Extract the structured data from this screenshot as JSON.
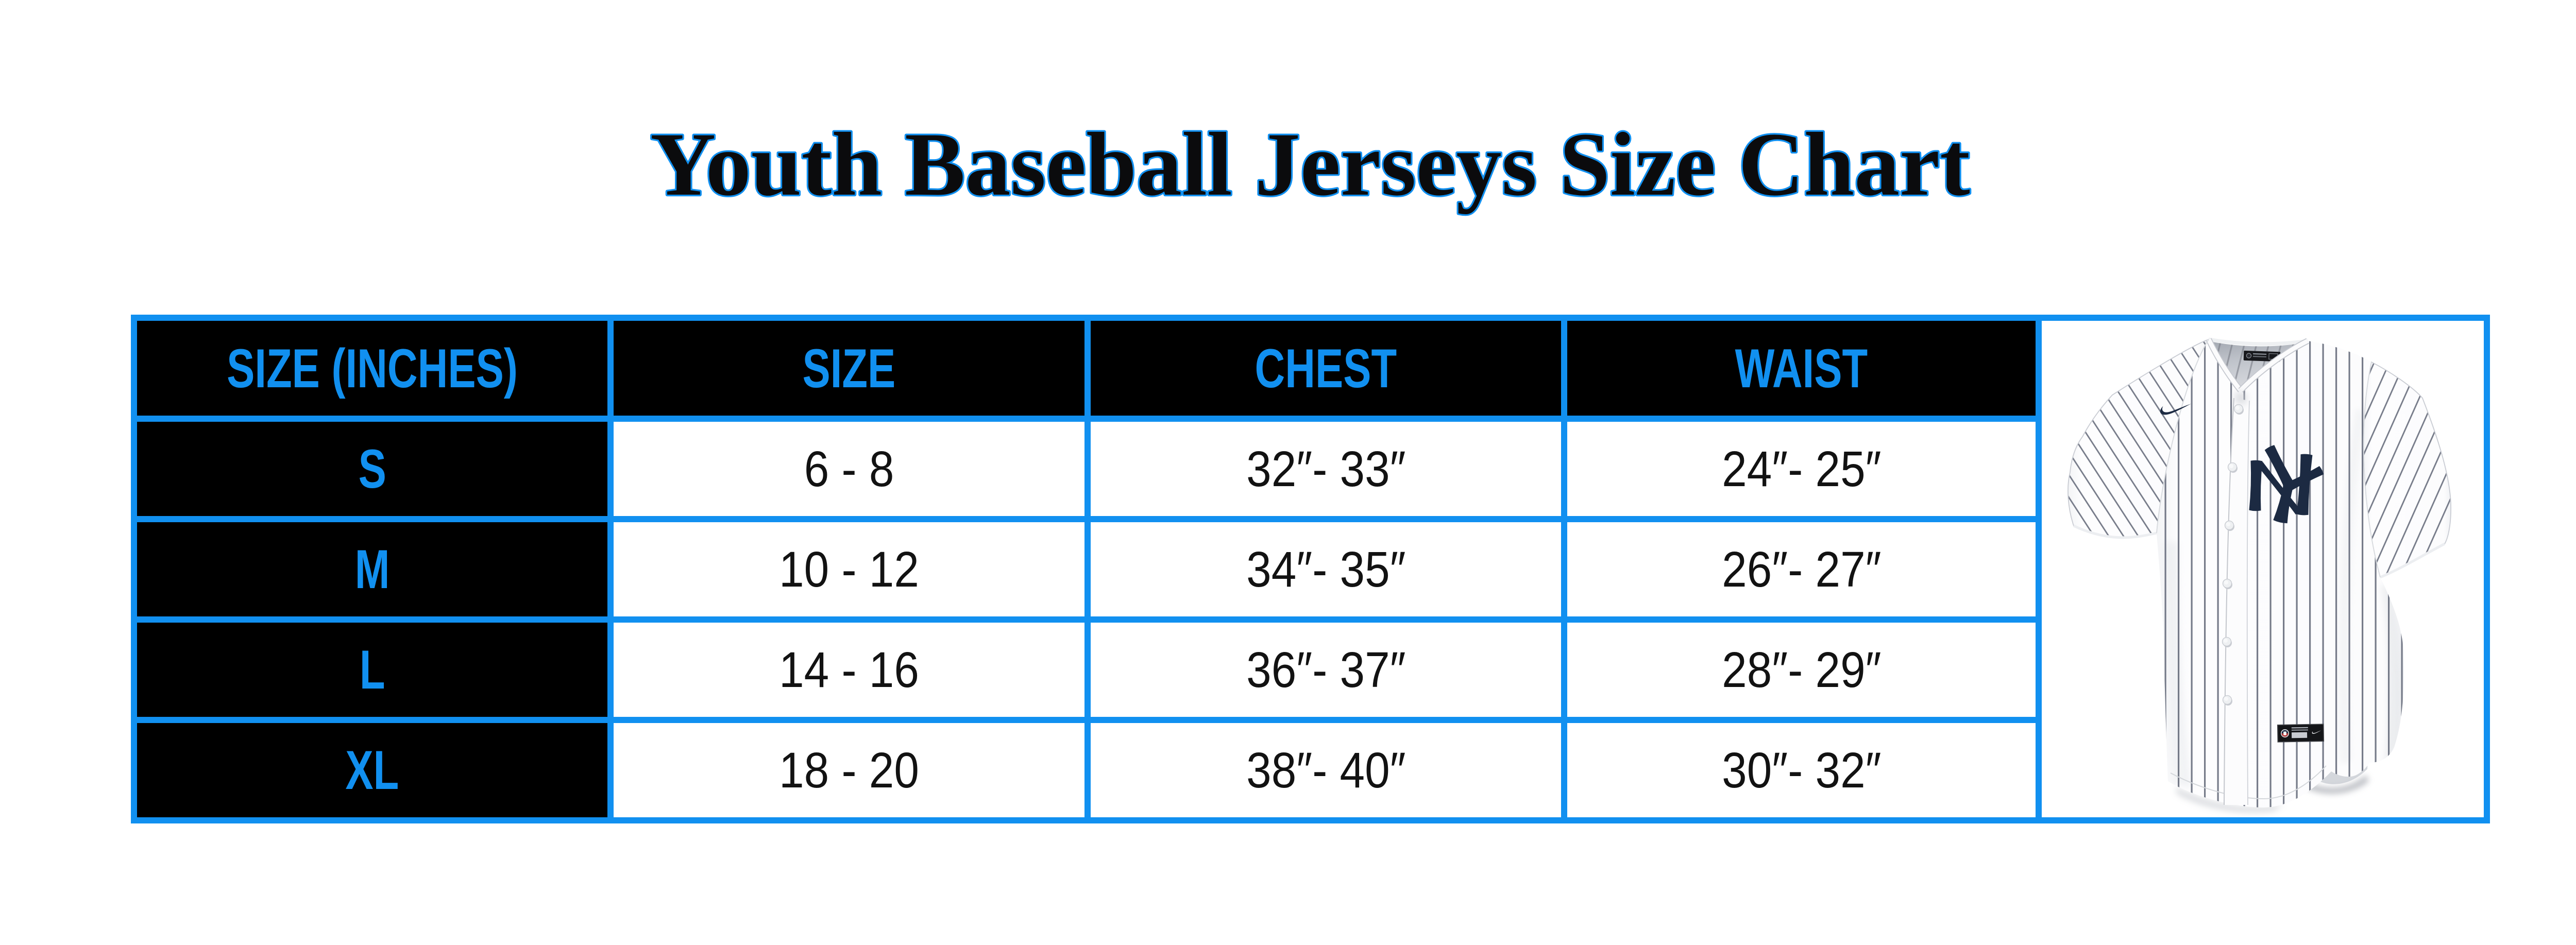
{
  "title": "Youth Baseball Jerseys Size Chart",
  "colors": {
    "accent_blue": "#1190F0",
    "title_fill": "#0B0B0D",
    "cell_black": "#000000",
    "data_text": "#121212",
    "jersey_navy": "#1C2A42",
    "pinstripe": "#6E7482"
  },
  "chart_data": {
    "type": "table",
    "title": "Youth Baseball Jerseys Size Chart",
    "columns": [
      "SIZE (INCHES)",
      "SIZE",
      "CHEST",
      "WAIST"
    ],
    "rows": [
      {
        "cells": [
          "S",
          "6 - 8",
          "32″- 33″",
          "24″- 25″"
        ]
      },
      {
        "cells": [
          "M",
          "10 - 12",
          "34″- 35″",
          "26″- 27″"
        ]
      },
      {
        "cells": [
          "L",
          "14 - 16",
          "36″- 37″",
          "28″- 29″"
        ]
      },
      {
        "cells": [
          "XL",
          "18 - 20",
          "38″- 40″",
          "30″- 32″"
        ]
      }
    ],
    "layout": {
      "grid": "blue 12px borders",
      "header_style": "blue text on black",
      "legend_position": "none"
    }
  },
  "jersey": {
    "alt": "White New York Yankees pinstripe baseball jersey, front view",
    "monogram": "NY",
    "brand_icon": "nike-swoosh"
  }
}
